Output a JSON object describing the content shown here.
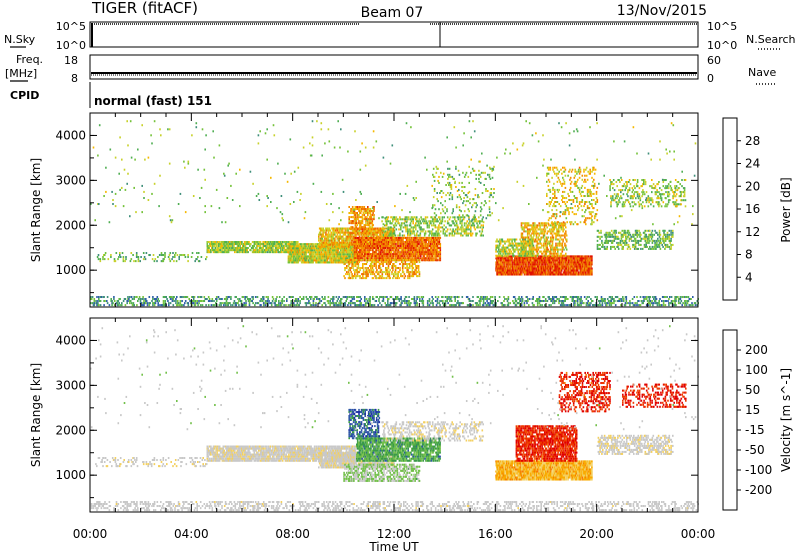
{
  "header": {
    "radar": "TIGER (fitACF)",
    "beam": "Beam 07",
    "date": "13/Nov/2015"
  },
  "strips": {
    "nsky_label": "N.Sky",
    "nsky_ticks": [
      "10^5",
      "10^0"
    ],
    "nsearch_label": "N.Search",
    "nsearch_ticks": [
      "10^5",
      "10^0"
    ],
    "freq_label_1": "Freq.",
    "freq_label_2": "[MHz]",
    "freq_ticks": [
      "18",
      "8"
    ],
    "nave_label": "Nave",
    "nave_ticks": [
      "60",
      "0"
    ],
    "cpid_label": "CPID",
    "cpid_text": "normal (fast) 151"
  },
  "chart_data": [
    {
      "type": "heatmap",
      "ylabel": "Slant Range [km]",
      "yticks": [
        "4000",
        "3000",
        "2000",
        "1000"
      ],
      "ylim": [
        180,
        4500
      ],
      "xlim": [
        0,
        24
      ],
      "colorbar": {
        "label": "Power [dB]",
        "ticks": [
          "28",
          "24",
          "20",
          "16",
          "12",
          "8",
          "4"
        ],
        "range": [
          0,
          30
        ],
        "colors": [
          "#1d1dff",
          "#2f5fa8",
          "#3f8f7a",
          "#4fae52",
          "#74c23a",
          "#c8d12a",
          "#f5b800",
          "#f39000",
          "#ef6a00",
          "#e83a00",
          "#e01000"
        ]
      },
      "regions": [
        {
          "t0": 0.0,
          "t1": 24.0,
          "r0": 200,
          "r1": 420,
          "value": 8,
          "density": 0.35
        },
        {
          "t0": 0.2,
          "t1": 4.6,
          "r0": 1180,
          "r1": 1380,
          "value": 11,
          "density": 0.18
        },
        {
          "t0": 4.6,
          "t1": 8.2,
          "r0": 1380,
          "r1": 1650,
          "value": 13,
          "density": 0.75
        },
        {
          "t0": 7.8,
          "t1": 10.5,
          "r0": 1150,
          "r1": 1600,
          "value": 15,
          "density": 0.9
        },
        {
          "t0": 9.0,
          "t1": 12.0,
          "r0": 1500,
          "r1": 1950,
          "value": 18,
          "density": 0.7
        },
        {
          "t0": 10.2,
          "t1": 11.2,
          "r0": 1800,
          "r1": 2400,
          "value": 20,
          "density": 0.55
        },
        {
          "t0": 10.4,
          "t1": 13.8,
          "r0": 1200,
          "r1": 1700,
          "value": 23,
          "density": 0.85
        },
        {
          "t0": 10.0,
          "t1": 13.0,
          "r0": 800,
          "r1": 1250,
          "value": 19,
          "density": 0.45
        },
        {
          "t0": 11.5,
          "t1": 15.5,
          "r0": 1750,
          "r1": 2200,
          "value": 13,
          "density": 0.35
        },
        {
          "t0": 13.5,
          "t1": 16.0,
          "r0": 2200,
          "r1": 3300,
          "value": 12,
          "density": 0.12
        },
        {
          "t0": 16.0,
          "t1": 19.8,
          "r0": 880,
          "r1": 1300,
          "value": 25,
          "density": 0.9
        },
        {
          "t0": 17.0,
          "t1": 18.8,
          "r0": 1300,
          "r1": 2050,
          "value": 18,
          "density": 0.5
        },
        {
          "t0": 16.0,
          "t1": 17.5,
          "r0": 1300,
          "r1": 1700,
          "value": 14,
          "density": 0.55
        },
        {
          "t0": 18.0,
          "t1": 20.0,
          "r0": 2000,
          "r1": 3300,
          "value": 17,
          "density": 0.2
        },
        {
          "t0": 20.0,
          "t1": 23.0,
          "r0": 1450,
          "r1": 1900,
          "value": 11,
          "density": 0.4
        },
        {
          "t0": 20.5,
          "t1": 23.5,
          "r0": 2400,
          "r1": 3000,
          "value": 13,
          "density": 0.25
        },
        {
          "t0": 0.0,
          "t1": 24.0,
          "r0": 2000,
          "r1": 4300,
          "value": 12,
          "density": 0.01
        }
      ]
    },
    {
      "type": "heatmap",
      "xlabel": "Time UT",
      "ylabel": "Slant Range [km]",
      "yticks": [
        "4000",
        "3000",
        "2000",
        "1000"
      ],
      "xticks": [
        "00:00",
        "04:00",
        "08:00",
        "12:00",
        "16:00",
        "20:00",
        "00:00"
      ],
      "ylim": [
        180,
        4500
      ],
      "xlim": [
        0,
        24
      ],
      "colorbar": {
        "label": "Velocity [m s^-1]",
        "ticks": [
          "200",
          "100",
          "50",
          "15",
          "-15",
          "-50",
          "-100",
          "-200"
        ],
        "range": [
          -250,
          250
        ],
        "colors": [
          "#e00000",
          "#ee3a00",
          "#f57a00",
          "#f9ab00",
          "#f3d060",
          "#c8c8c8",
          "#c8c8c8",
          "#72c04a",
          "#3a9a48",
          "#2f58a6",
          "#1f2fa8"
        ]
      },
      "regions": [
        {
          "t0": 0.0,
          "t1": 24.0,
          "r0": 200,
          "r1": 420,
          "value": 20,
          "density": 0.3
        },
        {
          "t0": 0.2,
          "t1": 4.6,
          "r0": 1180,
          "r1": 1380,
          "value": 0,
          "density": 0.18
        },
        {
          "t0": 4.6,
          "t1": 10.5,
          "r0": 1300,
          "r1": 1650,
          "value": 0,
          "density": 0.8
        },
        {
          "t0": 9.0,
          "t1": 12.0,
          "r0": 1150,
          "r1": 1500,
          "value": -5,
          "density": 0.75
        },
        {
          "t0": 10.2,
          "t1": 11.4,
          "r0": 1800,
          "r1": 2450,
          "value": 180,
          "density": 0.55
        },
        {
          "t0": 10.5,
          "t1": 13.8,
          "r0": 1300,
          "r1": 1800,
          "value": 120,
          "density": 0.7
        },
        {
          "t0": 10.0,
          "t1": 13.0,
          "r0": 850,
          "r1": 1250,
          "value": 70,
          "density": 0.55
        },
        {
          "t0": 11.5,
          "t1": 15.5,
          "r0": 1750,
          "r1": 2200,
          "value": 0,
          "density": 0.3
        },
        {
          "t0": 16.0,
          "t1": 19.8,
          "r0": 880,
          "r1": 1300,
          "value": -80,
          "density": 0.9
        },
        {
          "t0": 16.8,
          "t1": 19.2,
          "r0": 1300,
          "r1": 2100,
          "value": -200,
          "density": 0.7
        },
        {
          "t0": 18.5,
          "t1": 20.5,
          "r0": 2400,
          "r1": 3300,
          "value": -200,
          "density": 0.35
        },
        {
          "t0": 20.0,
          "t1": 23.0,
          "r0": 1450,
          "r1": 1900,
          "value": 0,
          "density": 0.45
        },
        {
          "t0": 21.0,
          "t1": 23.5,
          "r0": 2500,
          "r1": 3000,
          "value": -210,
          "density": 0.3
        },
        {
          "t0": 0.0,
          "t1": 24.0,
          "r0": 2000,
          "r1": 4300,
          "value": 30,
          "density": 0.01
        }
      ]
    }
  ]
}
